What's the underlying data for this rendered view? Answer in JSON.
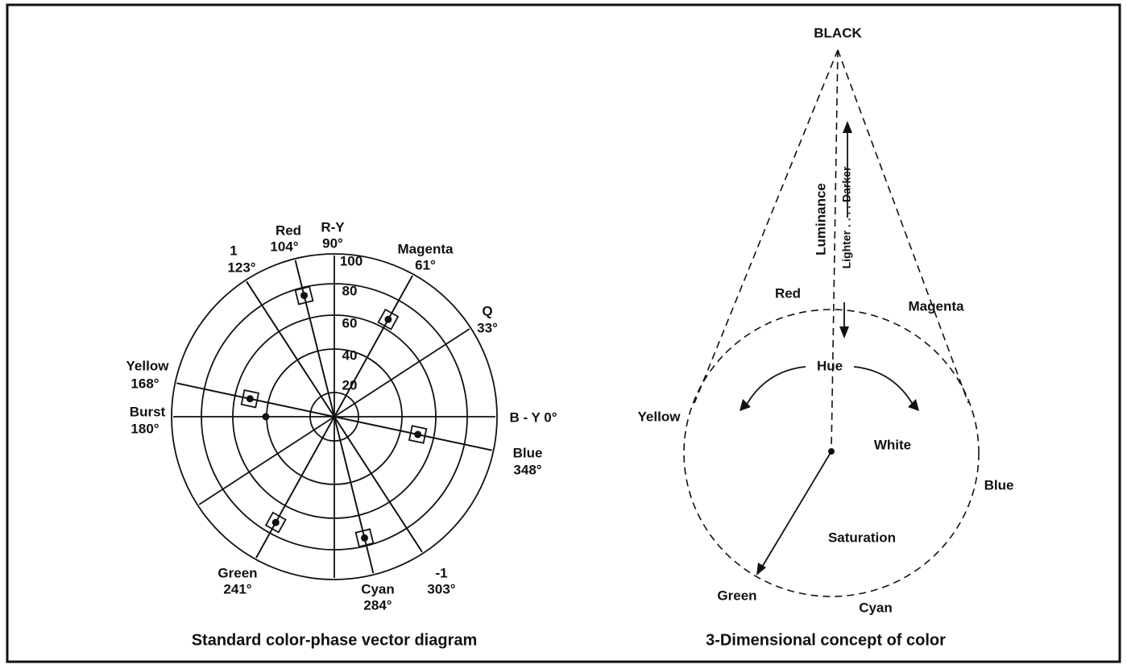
{
  "left": {
    "caption": "Standard color-phase vector diagram",
    "ring_labels": [
      "100",
      "80",
      "60",
      "40",
      "20"
    ],
    "axis_r_y": {
      "name": "R-Y",
      "angle": "90°"
    },
    "axis_b_y": "B - Y 0°",
    "vectors": [
      {
        "name": "Red",
        "angle": "104°"
      },
      {
        "name": "1",
        "angle": "123°"
      },
      {
        "name": "Magenta",
        "angle": "61°"
      },
      {
        "name": "Q",
        "angle": "33°"
      },
      {
        "name": "Yellow",
        "angle": "168°"
      },
      {
        "name": "Burst",
        "angle": "180°"
      },
      {
        "name": "Blue",
        "angle": "348°"
      },
      {
        "name": "Green",
        "angle": "241°"
      },
      {
        "name": "Cyan",
        "angle": "284°"
      },
      {
        "name": "-1",
        "angle": "303°"
      }
    ]
  },
  "right": {
    "caption": "3-Dimensional concept of color",
    "apex": "BLACK",
    "luminance": "Luminance",
    "scale": "Lighter . . . . Darker",
    "hue": "Hue",
    "center": "White",
    "saturation": "Saturation",
    "colors": [
      "Red",
      "Magenta",
      "Yellow",
      "Blue",
      "Green",
      "Cyan"
    ]
  }
}
